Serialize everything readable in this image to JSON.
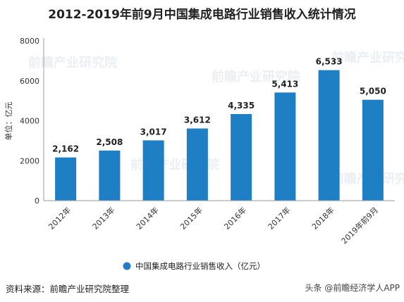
{
  "chart_data": {
    "type": "bar",
    "title": "2012-2019年前9月中国集成电路行业销售收入统计情况",
    "ylabel": "单位：亿元",
    "xlabel": "",
    "categories": [
      "2012年",
      "2013年",
      "2014年",
      "2015年",
      "2016年",
      "2017年",
      "2018年",
      "2019年前9月"
    ],
    "series": [
      {
        "name": "中国集成电路行业销售收入（亿元）",
        "values": [
          2162,
          2508,
          3017,
          3612,
          4335,
          5413,
          6533,
          5050
        ],
        "labels": [
          "2,162",
          "2,508",
          "3,017",
          "3,612",
          "4,335",
          "5,413",
          "6,533",
          "5,050"
        ]
      }
    ],
    "ylim": [
      0,
      8000
    ],
    "yticks": [
      0,
      2000,
      4000,
      6000,
      8000
    ],
    "grid": false,
    "legend_position": "bottom",
    "color": "#1f7fc4"
  },
  "watermark": "前瞻产业研究院",
  "source_text": "资料来源：前瞻产业研究院整理",
  "brand_text": "头条 @前瞻经济学人APP"
}
